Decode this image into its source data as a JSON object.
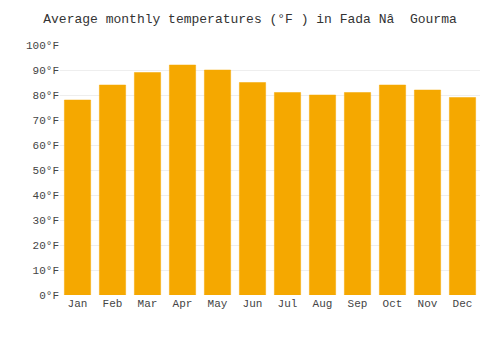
{
  "chart_data": {
    "type": "bar",
    "title": "Average monthly temperatures (°F ) in Fada Nâ  Gourma",
    "categories": [
      "Jan",
      "Feb",
      "Mar",
      "Apr",
      "May",
      "Jun",
      "Jul",
      "Aug",
      "Sep",
      "Oct",
      "Nov",
      "Dec"
    ],
    "values": [
      78,
      84,
      89,
      92,
      90,
      85,
      81,
      80,
      81,
      84,
      82,
      79
    ],
    "color": "#F5A800",
    "ylim": [
      0,
      100
    ],
    "yticks": [
      {
        "value": 0,
        "label": "0°F"
      },
      {
        "value": 10,
        "label": "10°F"
      },
      {
        "value": 20,
        "label": "20°F"
      },
      {
        "value": 30,
        "label": "30°F"
      },
      {
        "value": 40,
        "label": "40°F"
      },
      {
        "value": 50,
        "label": "50°F"
      },
      {
        "value": 60,
        "label": "60°F"
      },
      {
        "value": 70,
        "label": "70°F"
      },
      {
        "value": 80,
        "label": "80°F"
      },
      {
        "value": 90,
        "label": "90°F"
      },
      {
        "value": 100,
        "label": "100°F"
      }
    ],
    "grid": true
  }
}
